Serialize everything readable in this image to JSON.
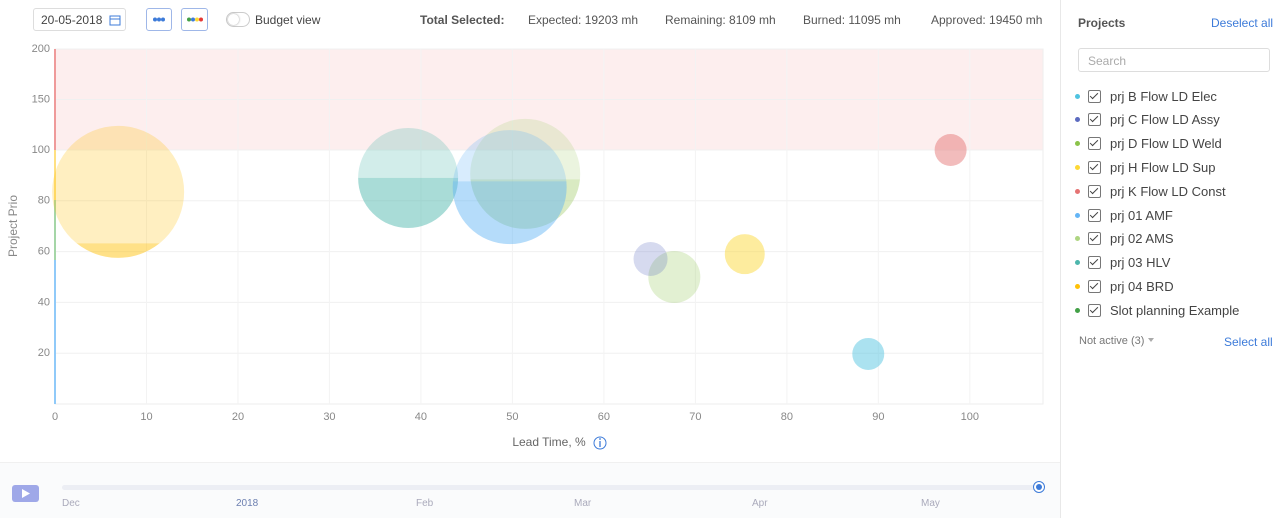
{
  "toolbar": {
    "date": "20-05-2018",
    "budget_toggle": "Budget view",
    "total_label": "Total Selected:",
    "stats": [
      "Expected: 19203 mh",
      "Remaining: 8109 mh",
      "Burned: 11095 mh",
      "Approved: 19450 mh"
    ]
  },
  "chart_data": {
    "type": "bubble",
    "x_label": "Lead Time, %",
    "y_label": "Project Prio",
    "xlim": [
      0,
      108
    ],
    "xticks": [
      0,
      10,
      20,
      30,
      40,
      50,
      60,
      70,
      80,
      90,
      100
    ],
    "ylim": [
      0,
      200
    ],
    "yticks": [
      20,
      40,
      60,
      80,
      100,
      150,
      200
    ],
    "grid": true,
    "band": {
      "range": [
        100,
        200
      ],
      "color": "#fdeeee"
    },
    "series": [
      {
        "name": "prj B Flow LD Elec",
        "color": "#4fc3e0",
        "x": [
          88.9
        ],
        "y": [
          19.7
        ],
        "size": [
          16
        ],
        "fill": [
          1
        ]
      },
      {
        "name": "prj C Flow LD Assy",
        "color": "#5c6bc0",
        "x": [
          65.1
        ],
        "y": [
          57.1
        ],
        "size": [
          17
        ],
        "fill": [
          0
        ]
      },
      {
        "name": "prj D Flow LD Weld",
        "color": "#8bc34a",
        "x": [
          67.7
        ],
        "y": [
          50
        ],
        "size": [
          26
        ],
        "fill": [
          0
        ]
      },
      {
        "name": "prj H Flow LD Sup",
        "color": "#fdd835",
        "x": [
          75.4
        ],
        "y": [
          59
        ],
        "size": [
          20
        ],
        "fill": [
          1
        ]
      },
      {
        "name": "prj K Flow LD Const",
        "color": "#e57373",
        "x": [
          97.9
        ],
        "y": [
          100
        ],
        "size": [
          16
        ],
        "fill": [
          1
        ]
      },
      {
        "name": "prj 01 AMF",
        "color": "#64b5f6",
        "x": [
          49.7
        ],
        "y": [
          85.4
        ],
        "size": [
          57
        ],
        "fill": [
          0.55
        ]
      },
      {
        "name": "prj 02 AMS",
        "color": "#aed581",
        "x": [
          51.4
        ],
        "y": [
          90.6
        ],
        "size": [
          55
        ],
        "fill": [
          0.45
        ]
      },
      {
        "name": "prj 03 HLV",
        "color": "#4db6ac",
        "x": [
          38.6
        ],
        "y": [
          89
        ],
        "size": [
          50
        ],
        "fill": [
          0.5
        ]
      },
      {
        "name": "prj 04 BRD",
        "color": "#ffc107",
        "x": [
          6.9
        ],
        "y": [
          83.5
        ],
        "size": [
          66
        ],
        "fill": [
          0.11
        ]
      },
      {
        "name": "Slot planning Example",
        "color": "#43a047",
        "x": [],
        "y": [],
        "size": [],
        "fill": []
      }
    ]
  },
  "sidebar": {
    "title": "Projects",
    "deselect": "Deselect all",
    "search_placeholder": "Search",
    "not_active": "Not active (3)",
    "select_all": "Select all"
  },
  "timeline": {
    "labels": [
      "Dec",
      "2018",
      "Feb",
      "Mar",
      "Apr",
      "May"
    ]
  }
}
